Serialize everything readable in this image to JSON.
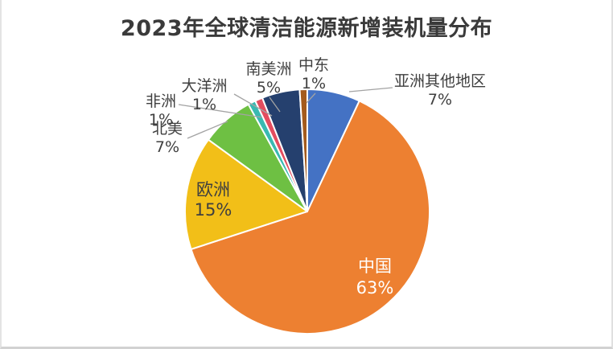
{
  "page": {
    "background": "#ffffff",
    "border_color": "#d2d2d2"
  },
  "chart_data": {
    "type": "pie",
    "title": "2023年全球清洁能源新增装机量分布",
    "title_color": "#3a3a3a",
    "legend": "none",
    "start_angle_deg": 0,
    "direction": "clockwise",
    "total": 100,
    "label_text_color": "#3f3f3f",
    "inside_label_color_china": "#ffffff",
    "leader_line_color": "#a3a3a3",
    "slice_border_color": "#ffffff",
    "slices": [
      {
        "label": "亚洲其他地区",
        "value": 7,
        "pct": "7%",
        "color": "#4472c4",
        "label_placement": "outside-right"
      },
      {
        "label": "中国",
        "value": 63,
        "pct": "63%",
        "color": "#ed8031",
        "label_placement": "inside"
      },
      {
        "label": "欧洲",
        "value": 15,
        "pct": "15%",
        "color": "#f2bf18",
        "label_placement": "inside"
      },
      {
        "label": "北美",
        "value": 7,
        "pct": "7%",
        "color": "#6ec043",
        "label_placement": "outside-left"
      },
      {
        "label": "非洲",
        "value": 1,
        "pct": "1%",
        "color": "#39b9b1",
        "label_placement": "outside-left"
      },
      {
        "label": "大洋洲",
        "value": 1,
        "pct": "1%",
        "color": "#e34d5f",
        "label_placement": "outside-top"
      },
      {
        "label": "南美洲",
        "value": 5,
        "pct": "5%",
        "color": "#25406e",
        "label_placement": "outside-top"
      },
      {
        "label": "中东",
        "value": 1,
        "pct": "1%",
        "color": "#a45b1d",
        "label_placement": "outside-top"
      }
    ]
  }
}
